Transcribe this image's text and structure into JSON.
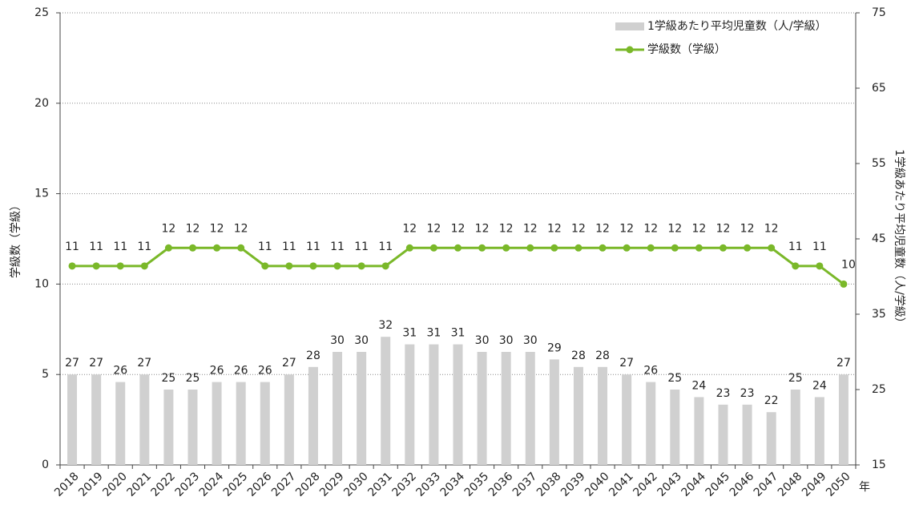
{
  "chart_data": {
    "type": "bar_line",
    "categories": [
      "2018",
      "2019",
      "2020",
      "2021",
      "2022",
      "2023",
      "2024",
      "2025",
      "2026",
      "2027",
      "2028",
      "2029",
      "2030",
      "2031",
      "2032",
      "2033",
      "2034",
      "2035",
      "2036",
      "2037",
      "2038",
      "2039",
      "2040",
      "2041",
      "2042",
      "2043",
      "2044",
      "2045",
      "2046",
      "2047",
      "2048",
      "2049",
      "2050"
    ],
    "x_label": "年",
    "y_label": "学級数（学級）",
    "y2_label": "1学級あたり平均児童数（人/学級）",
    "ylim": [
      0,
      25
    ],
    "yticks": [
      0,
      5,
      10,
      15,
      20,
      25
    ],
    "y2lim": [
      15,
      75
    ],
    "y2ticks": [
      15,
      25,
      35,
      45,
      55,
      65,
      75
    ],
    "grid": true,
    "legend": "upper right",
    "series": [
      {
        "name": "1学級あたり平均児童数（人/学級）",
        "type": "bar",
        "axis": "y2",
        "color": "#d0d0d0",
        "values": [
          27,
          27,
          26,
          27,
          25,
          25,
          26,
          26,
          26,
          27,
          28,
          30,
          30,
          32,
          31,
          31,
          31,
          30,
          30,
          30,
          29,
          28,
          28,
          27,
          26,
          25,
          24,
          23,
          23,
          22,
          25,
          24,
          27
        ]
      },
      {
        "name": "学級数（学級）",
        "type": "line",
        "axis": "y",
        "color": "#7ab829",
        "values": [
          11,
          11,
          11,
          11,
          12,
          12,
          12,
          12,
          11,
          11,
          11,
          11,
          11,
          11,
          12,
          12,
          12,
          12,
          12,
          12,
          12,
          12,
          12,
          12,
          12,
          12,
          12,
          12,
          12,
          12,
          11,
          11,
          10
        ]
      }
    ]
  }
}
